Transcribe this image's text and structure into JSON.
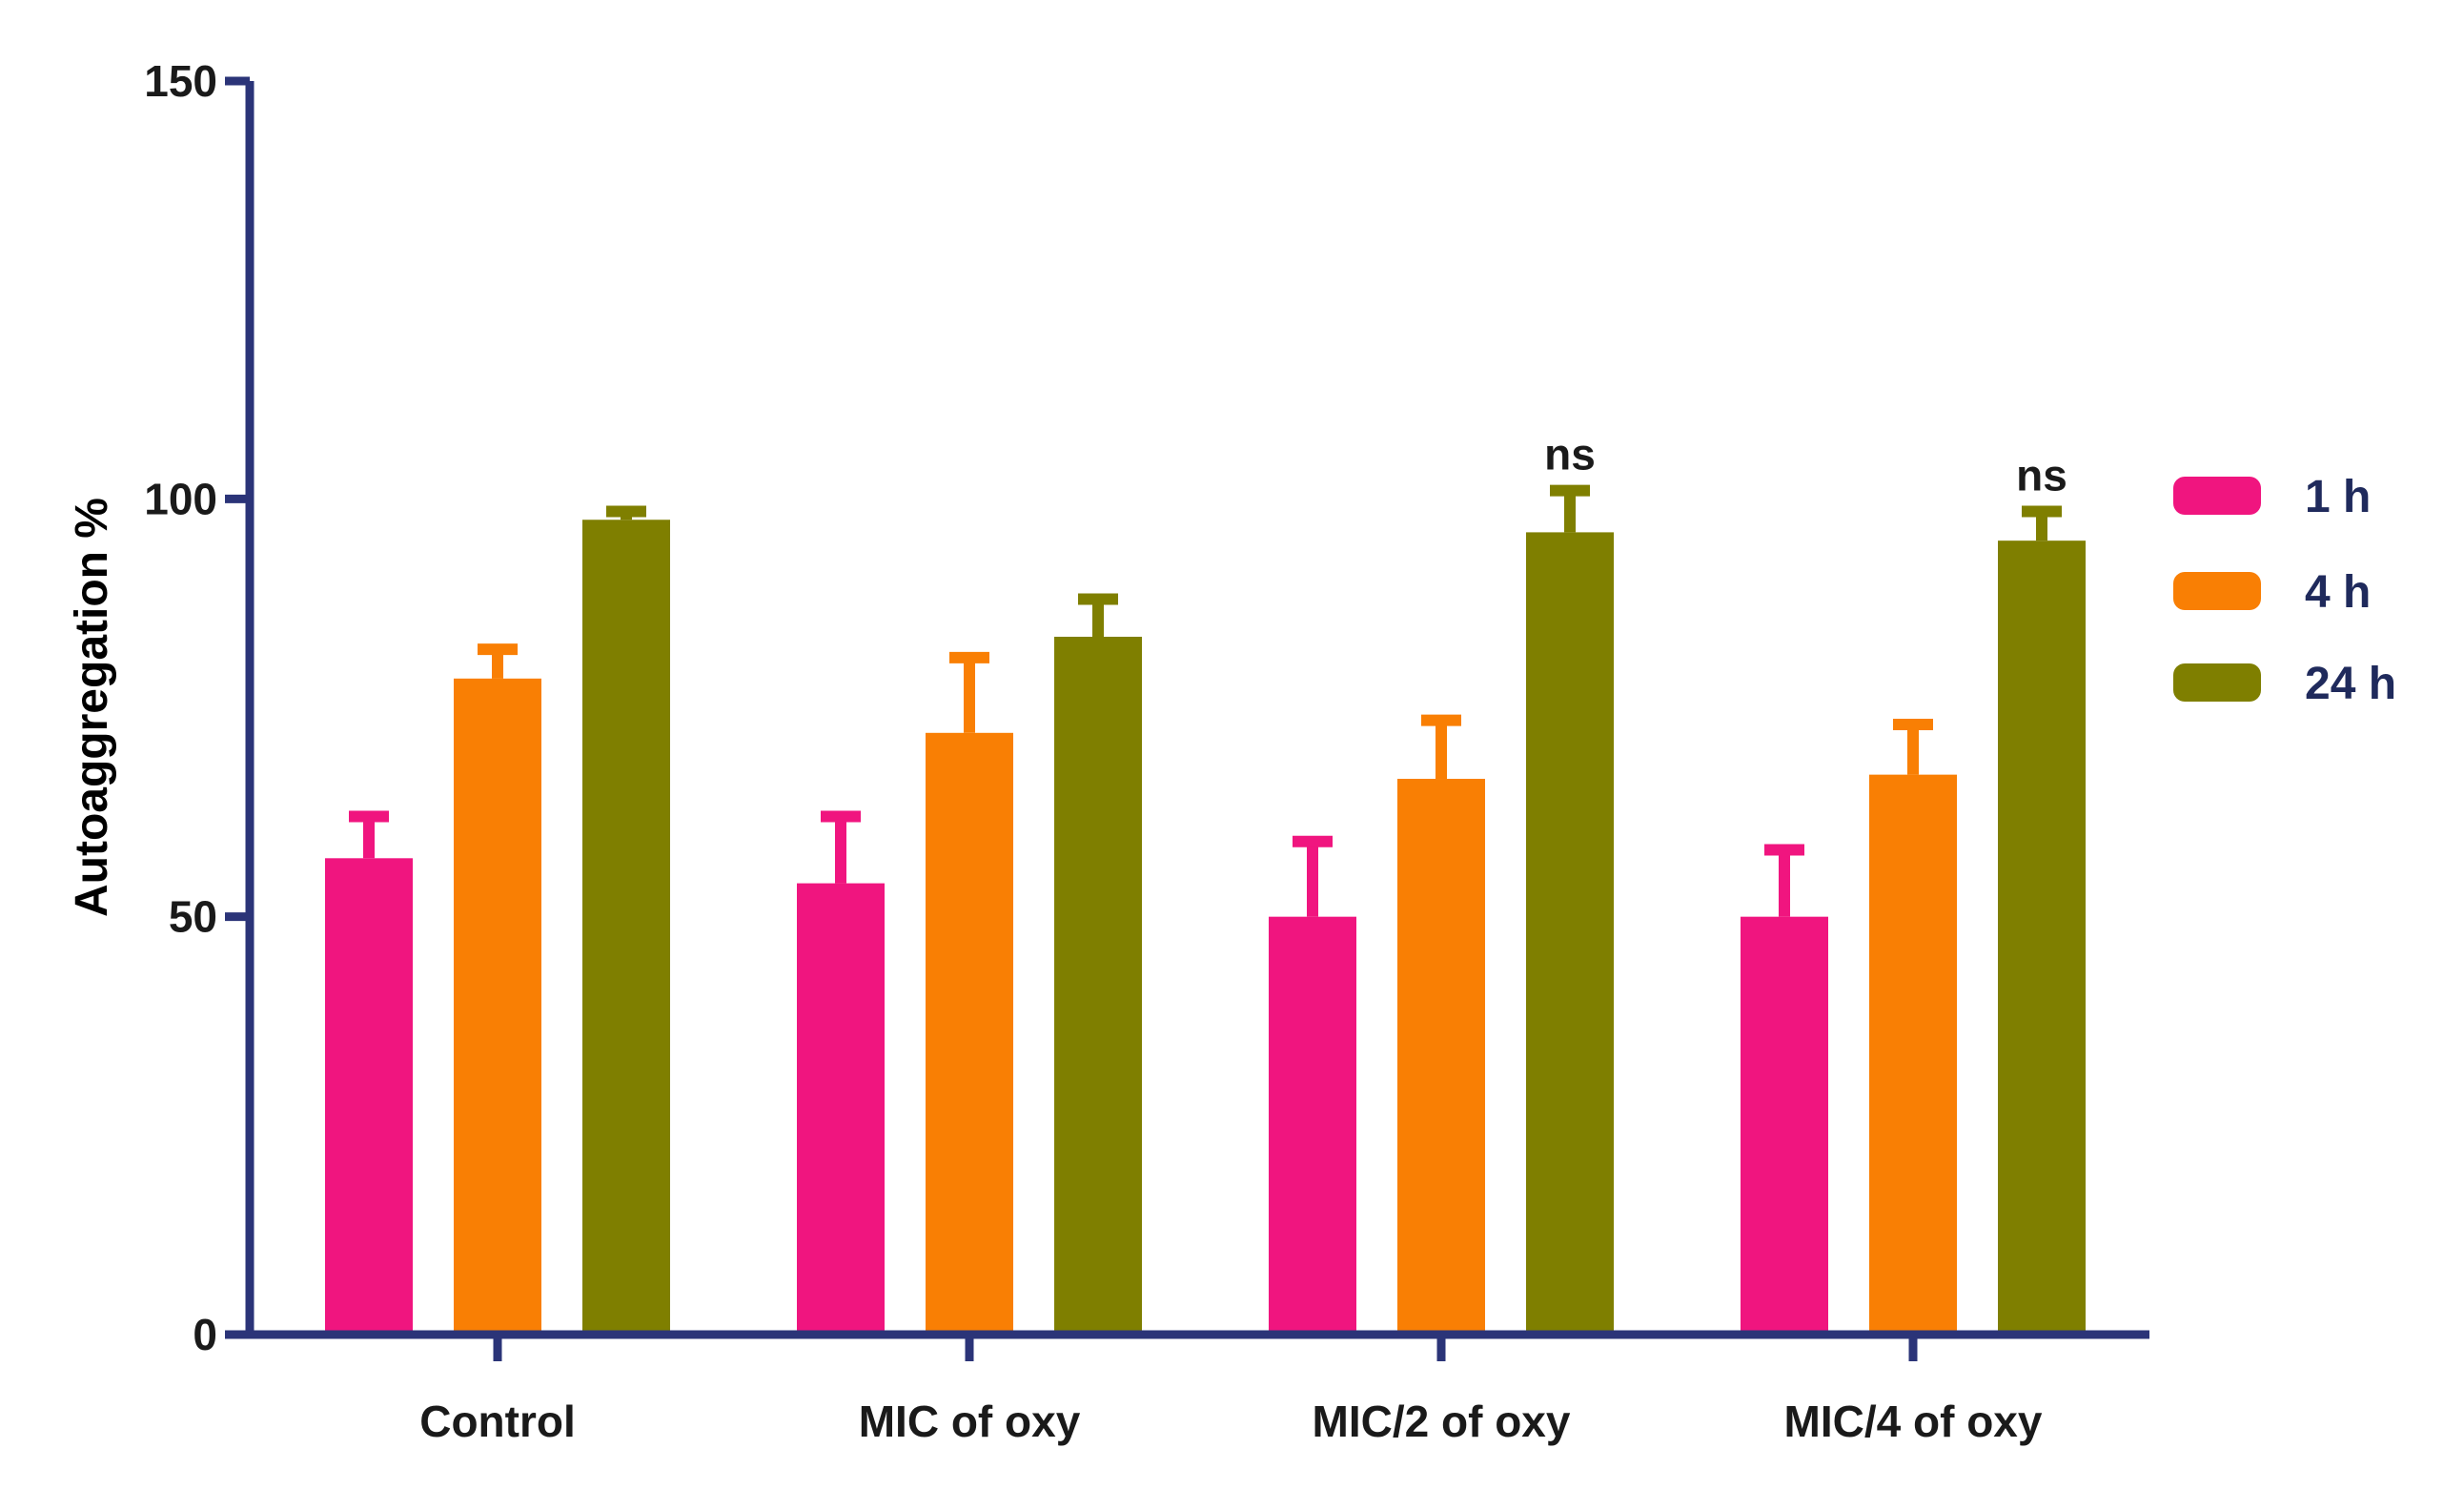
{
  "chart_data": {
    "type": "bar",
    "title": "",
    "xlabel": "",
    "ylabel": "Autoaggregation %",
    "ylim": [
      0,
      150
    ],
    "yticks": [
      0,
      50,
      100,
      150
    ],
    "categories": [
      "Control",
      "MIC of oxy",
      "MIC/2 of oxy",
      "MIC/4 of oxy"
    ],
    "series": [
      {
        "name": "1 h",
        "color": "#f0157f",
        "values": [
          57,
          54,
          50,
          50
        ],
        "errors": [
          5,
          8,
          9,
          8
        ]
      },
      {
        "name": "4 h",
        "color": "#f97f04",
        "values": [
          78.5,
          72,
          66.5,
          67
        ],
        "errors": [
          3.5,
          9,
          7,
          6
        ]
      },
      {
        "name": "24 h",
        "color": "#7f7f00",
        "values": [
          97.5,
          83.5,
          96,
          95
        ],
        "errors": [
          1,
          4.5,
          5,
          3.5
        ]
      }
    ],
    "annotations": [
      {
        "category": "MIC/2 of oxy",
        "series": "24 h",
        "text": "ns"
      },
      {
        "category": "MIC/4 of oxy",
        "series": "24 h",
        "text": "ns"
      }
    ],
    "axis_color": "#2b3478",
    "legend_position": "right"
  }
}
